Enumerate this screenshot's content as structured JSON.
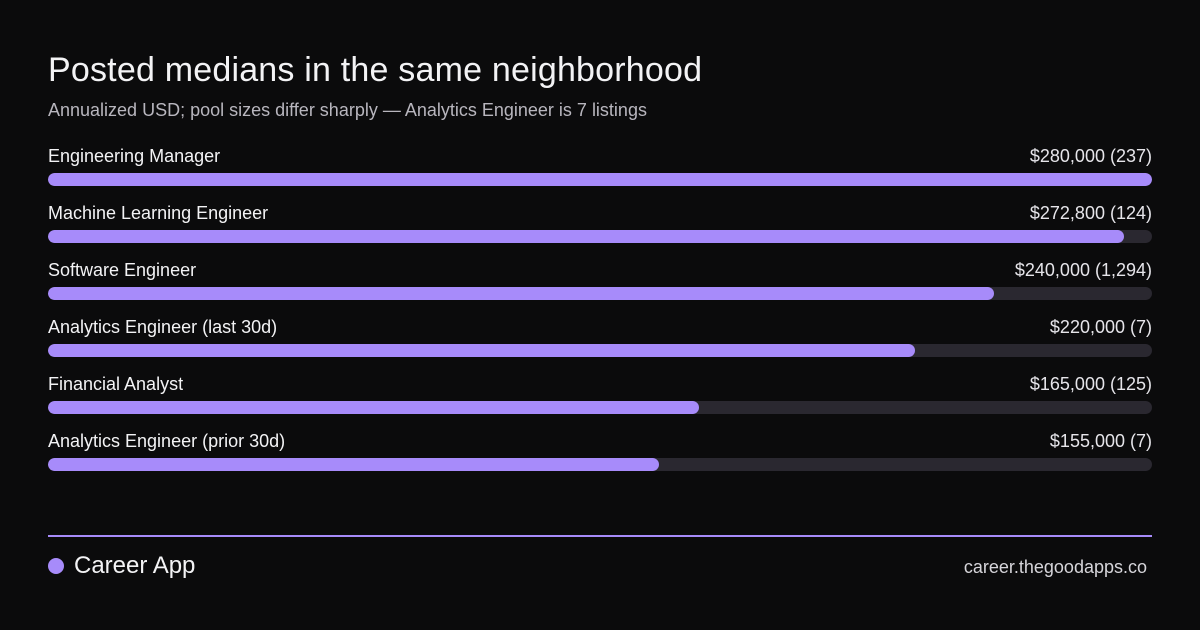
{
  "header": {
    "title": "Posted medians in the same neighborhood",
    "subtitle": "Annualized USD; pool sizes differ sharply — Analytics Engineer is 7 listings"
  },
  "colors": {
    "background": "#0b0b0c",
    "accent": "#a78bfa",
    "track": "#2a2830"
  },
  "chart_data": {
    "type": "bar",
    "orientation": "horizontal",
    "title": "Posted medians in the same neighborhood",
    "subtitle": "Annualized USD; pool sizes differ sharply — Analytics Engineer is 7 listings",
    "xlim": [
      0,
      280000
    ],
    "grid": false,
    "categories": [
      "Engineering Manager",
      "Machine Learning Engineer",
      "Software Engineer",
      "Analytics Engineer (last 30d)",
      "Financial Analyst",
      "Analytics Engineer (prior 30d)"
    ],
    "values": [
      280000,
      272800,
      240000,
      220000,
      165000,
      155000
    ],
    "counts": [
      237,
      124,
      1294,
      7,
      125,
      7
    ],
    "value_labels": [
      "$280,000 (237)",
      "$272,800 (124)",
      "$240,000 (1,294)",
      "$220,000 (7)",
      "$165,000 (125)",
      "$155,000 (7)"
    ]
  },
  "footer": {
    "brand": "Career App",
    "url": "career.thegoodapps.co"
  }
}
